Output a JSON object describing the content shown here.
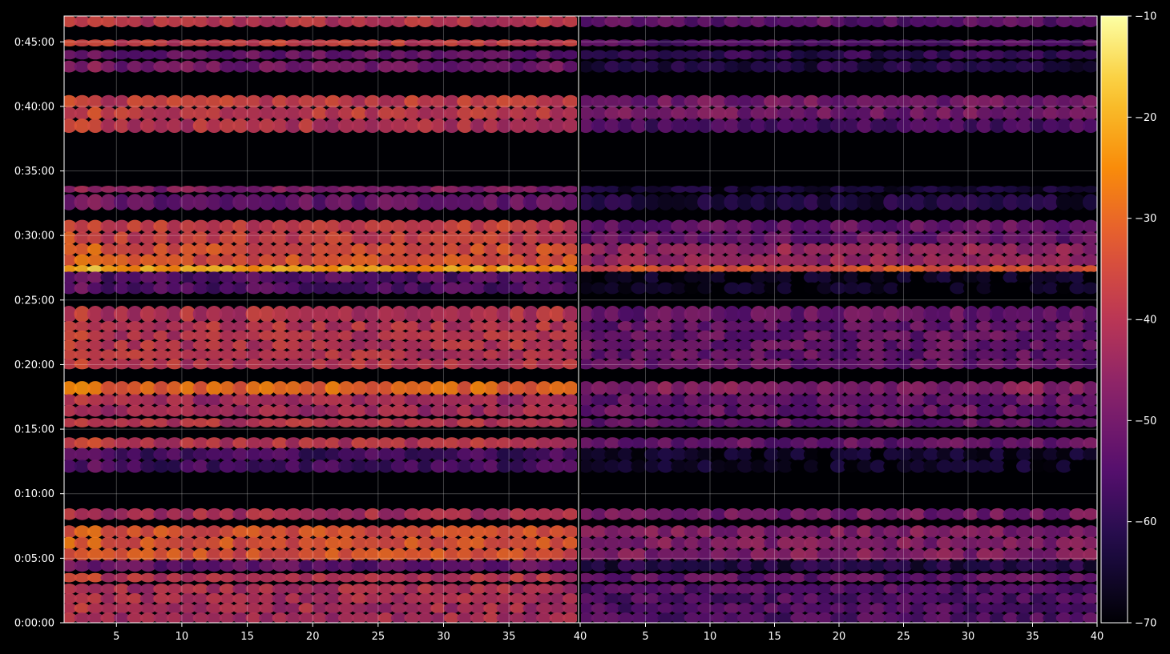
{
  "chart_data": {
    "type": "heatmap",
    "title": "",
    "xlabel": "",
    "ylabel": "",
    "grid": true,
    "panels": [
      {
        "name": "",
        "xlim": [
          1,
          40
        ],
        "xticks": [
          "5",
          "10",
          "15",
          "20",
          "25",
          "30",
          "35",
          "40"
        ]
      },
      {
        "name": "",
        "xlim": [
          1,
          40
        ],
        "xticks": [
          "5",
          "10",
          "15",
          "20",
          "25",
          "30",
          "35",
          "40"
        ]
      }
    ],
    "y": {
      "range_seconds": [
        0,
        2820
      ],
      "ticks": [
        {
          "label": "0:00:00",
          "seconds": 0
        },
        {
          "label": "0:05:00",
          "seconds": 300
        },
        {
          "label": "0:10:00",
          "seconds": 600
        },
        {
          "label": "0:15:00",
          "seconds": 900
        },
        {
          "label": "0:20:00",
          "seconds": 1200
        },
        {
          "label": "0:25:00",
          "seconds": 1500
        },
        {
          "label": "0:30:00",
          "seconds": 1800
        },
        {
          "label": "0:35:00",
          "seconds": 2100
        },
        {
          "label": "0:40:00",
          "seconds": 2400
        },
        {
          "label": "0:45:00",
          "seconds": 2700
        }
      ]
    },
    "colorbar": {
      "colormap": "inferno",
      "range": [
        -70,
        -10
      ],
      "ticks": [
        "−10",
        "−20",
        "−30",
        "−40",
        "−50",
        "−60",
        "−70"
      ]
    },
    "bands": [
      {
        "t": [
          2770,
          2820
        ],
        "left": -40,
        "right": -53
      },
      {
        "t": [
          2690,
          2710
        ],
        "left": -38,
        "right": -55
      },
      {
        "t": [
          2620,
          2660
        ],
        "left": -52,
        "right": -60
      },
      {
        "t": [
          2560,
          2610
        ],
        "left": -50,
        "right": -62
      },
      {
        "t": [
          2340,
          2450
        ],
        "left": -38,
        "right": -50
      },
      {
        "t": [
          2280,
          2340
        ],
        "left": -40,
        "right": -56
      },
      {
        "t": [
          2000,
          2030
        ],
        "left": -48,
        "right": -65
      },
      {
        "t": [
          1920,
          1990
        ],
        "left": -52,
        "right": -63
      },
      {
        "t": [
          1760,
          1870
        ],
        "left": -37,
        "right": -52
      },
      {
        "t": [
          1660,
          1760
        ],
        "left": -34,
        "right": -45
      },
      {
        "t": [
          1640,
          1660
        ],
        "left": -22,
        "right": -34
      },
      {
        "t": [
          1530,
          1630
        ],
        "left": -55,
        "right": -67
      },
      {
        "t": [
          1400,
          1470
        ],
        "left": -40,
        "right": -52
      },
      {
        "t": [
          1180,
          1400
        ],
        "left": -40,
        "right": -52
      },
      {
        "t": [
          1060,
          1120
        ],
        "left": -30,
        "right": -47
      },
      {
        "t": [
          960,
          1060
        ],
        "left": -43,
        "right": -52
      },
      {
        "t": [
          910,
          950
        ],
        "left": -40,
        "right": -52
      },
      {
        "t": [
          810,
          860
        ],
        "left": -40,
        "right": -52
      },
      {
        "t": [
          700,
          810
        ],
        "left": -57,
        "right": -66
      },
      {
        "t": [
          480,
          530
        ],
        "left": -42,
        "right": -50
      },
      {
        "t": [
          290,
          450
        ],
        "left": -34,
        "right": -48
      },
      {
        "t": [
          240,
          290
        ],
        "left": -53,
        "right": -62
      },
      {
        "t": [
          190,
          230
        ],
        "left": -40,
        "right": -53
      },
      {
        "t": [
          0,
          180
        ],
        "left": -42,
        "right": -55
      }
    ]
  }
}
